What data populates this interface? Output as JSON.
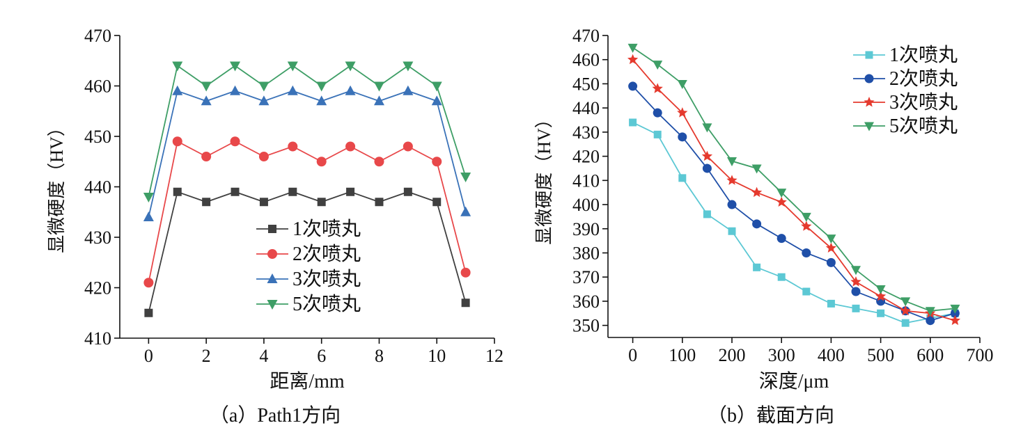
{
  "chart_data": [
    {
      "type": "line",
      "caption": "（a）Path1方向",
      "xlabel": "距离/mm",
      "ylabel": "显微硬度（HV）",
      "xlim": [
        -1,
        12
      ],
      "ylim": [
        410,
        470
      ],
      "xticks": [
        0,
        2,
        4,
        6,
        8,
        10,
        12
      ],
      "yticks": [
        410,
        420,
        430,
        440,
        450,
        460,
        470
      ],
      "grid": false,
      "legend_position": "center-bottom",
      "x": [
        0,
        1,
        2,
        3,
        4,
        5,
        6,
        7,
        8,
        9,
        10,
        11
      ],
      "series": [
        {
          "name": "1次喷丸",
          "color": "#404040",
          "marker": "square",
          "values": [
            415,
            439,
            437,
            439,
            437,
            439,
            437,
            439,
            437,
            439,
            437,
            417
          ]
        },
        {
          "name": "2次喷丸",
          "color": "#e8484a",
          "marker": "circle",
          "values": [
            421,
            449,
            446,
            449,
            446,
            448,
            445,
            448,
            445,
            448,
            445,
            423
          ]
        },
        {
          "name": "3次喷丸",
          "color": "#3a72b8",
          "marker": "triangle-up",
          "values": [
            434,
            459,
            457,
            459,
            457,
            459,
            457,
            459,
            457,
            459,
            457,
            435
          ]
        },
        {
          "name": "5次喷丸",
          "color": "#3e9e66",
          "marker": "triangle-down",
          "values": [
            438,
            464,
            460,
            464,
            460,
            464,
            460,
            464,
            460,
            464,
            460,
            442
          ]
        }
      ]
    },
    {
      "type": "line",
      "caption": "（b）截面方向",
      "xlabel": "深度/μm",
      "ylabel": "显微硬度（HV）",
      "xlim": [
        -50,
        700
      ],
      "ylim": [
        345,
        470
      ],
      "xticks": [
        0,
        100,
        200,
        300,
        400,
        500,
        600,
        700
      ],
      "yticks": [
        350,
        360,
        370,
        380,
        390,
        400,
        410,
        420,
        430,
        440,
        450,
        460,
        470
      ],
      "grid": false,
      "legend_position": "top-right",
      "x": [
        0,
        50,
        100,
        150,
        200,
        250,
        300,
        350,
        400,
        450,
        500,
        550,
        600,
        650
      ],
      "series": [
        {
          "name": "1次喷丸",
          "color": "#5cc8d4",
          "marker": "square",
          "values": [
            434,
            429,
            411,
            396,
            389,
            374,
            370,
            364,
            359,
            357,
            355,
            351,
            353,
            355
          ]
        },
        {
          "name": "2次喷丸",
          "color": "#1f4fa8",
          "marker": "circle",
          "values": [
            449,
            438,
            428,
            415,
            400,
            392,
            386,
            380,
            376,
            364,
            360,
            356,
            352,
            355
          ]
        },
        {
          "name": "3次喷丸",
          "color": "#e53a2e",
          "marker": "star",
          "values": [
            460,
            448,
            438,
            420,
            410,
            405,
            401,
            391,
            382,
            368,
            362,
            356,
            355,
            352
          ]
        },
        {
          "name": "5次喷丸",
          "color": "#3e9e66",
          "marker": "triangle-down",
          "values": [
            465,
            458,
            450,
            432,
            418,
            415,
            405,
            395,
            386,
            373,
            365,
            360,
            356,
            357
          ]
        }
      ]
    }
  ]
}
